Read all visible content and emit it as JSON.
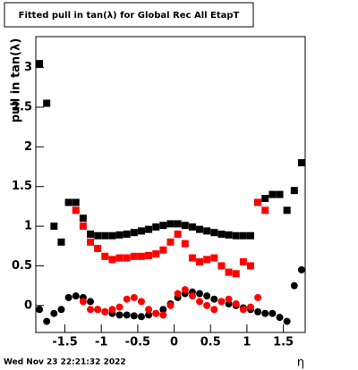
{
  "chart_data": {
    "type": "scatter",
    "title": "Fitted pull in tan(λ) for Global Rec All EtapT",
    "ylabel": "pull in tan(λ)",
    "xlabel": "η",
    "footer": "Wed Nov 23 22:21:32 2022",
    "xlim": [
      -1.9,
      1.8
    ],
    "ylim": [
      -0.34,
      3.39
    ],
    "xticks": [
      -1.5,
      -1,
      -0.5,
      0,
      0.5,
      1,
      1.5
    ],
    "yticks": [
      0,
      0.5,
      1,
      1.5,
      2,
      2.5,
      3
    ],
    "x": [
      -1.85,
      -1.75,
      -1.65,
      -1.55,
      -1.45,
      -1.35,
      -1.25,
      -1.15,
      -1.05,
      -0.95,
      -0.85,
      -0.75,
      -0.65,
      -0.55,
      -0.45,
      -0.35,
      -0.25,
      -0.15,
      -0.05,
      0.05,
      0.15,
      0.25,
      0.35,
      0.45,
      0.55,
      0.65,
      0.75,
      0.85,
      0.95,
      1.05,
      1.15,
      1.25,
      1.35,
      1.45,
      1.55,
      1.65,
      1.75
    ],
    "series": [
      {
        "marker": "square",
        "color": "#000000",
        "values": [
          3.05,
          2.55,
          1.0,
          0.8,
          1.3,
          1.3,
          1.1,
          0.9,
          0.88,
          0.88,
          0.88,
          0.89,
          0.9,
          0.92,
          0.94,
          0.96,
          0.99,
          1.01,
          1.03,
          1.03,
          1.01,
          0.99,
          0.96,
          0.94,
          0.92,
          0.9,
          0.89,
          0.88,
          0.88,
          0.88,
          1.3,
          1.35,
          1.4,
          1.4,
          1.2,
          1.45,
          1.8
        ]
      },
      {
        "marker": "square",
        "color": "#ff0000",
        "values": [
          null,
          null,
          null,
          null,
          null,
          1.2,
          1.0,
          0.8,
          0.72,
          0.62,
          0.58,
          0.6,
          0.6,
          0.62,
          0.62,
          0.63,
          0.65,
          0.7,
          0.8,
          0.9,
          0.78,
          0.6,
          0.55,
          0.58,
          0.6,
          0.5,
          0.42,
          0.4,
          0.55,
          0.5,
          1.3,
          1.2,
          null,
          null,
          null,
          null,
          null
        ]
      },
      {
        "marker": "circle",
        "color": "#000000",
        "values": [
          -0.05,
          -0.2,
          -0.1,
          -0.05,
          0.1,
          0.12,
          0.1,
          0.05,
          -0.05,
          -0.08,
          -0.1,
          -0.12,
          -0.12,
          -0.13,
          -0.14,
          -0.12,
          -0.1,
          -0.05,
          0.02,
          0.1,
          0.15,
          0.17,
          0.15,
          0.12,
          0.08,
          0.05,
          0.02,
          0.0,
          -0.03,
          -0.05,
          -0.08,
          -0.1,
          -0.1,
          -0.15,
          -0.2,
          0.25,
          0.45
        ]
      },
      {
        "marker": "circle",
        "color": "#ff0000",
        "values": [
          null,
          null,
          null,
          null,
          null,
          null,
          0.05,
          -0.05,
          -0.05,
          -0.08,
          -0.05,
          -0.02,
          0.08,
          0.1,
          0.05,
          -0.05,
          -0.1,
          -0.12,
          0.0,
          0.15,
          0.2,
          0.12,
          0.05,
          0.0,
          -0.05,
          0.05,
          0.08,
          0.02,
          -0.05,
          -0.02,
          0.1,
          null,
          null,
          null,
          null,
          null,
          null
        ]
      }
    ]
  }
}
